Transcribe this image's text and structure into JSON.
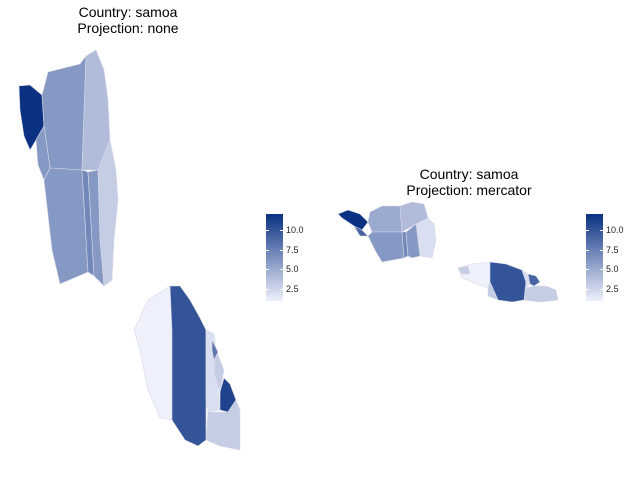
{
  "color_scale": {
    "low": "#eef0fb",
    "high": "#0a3182",
    "min": 1,
    "max": 12
  },
  "panels": [
    {
      "id": "none",
      "title_line1": "Country: samoa",
      "title_line2": "Projection: none",
      "legend_ticks": [
        {
          "label": "10.0",
          "value": 10.0
        },
        {
          "label": "7.5",
          "value": 7.5
        },
        {
          "label": "5.0",
          "value": 5.0
        },
        {
          "label": "2.5",
          "value": 2.5
        }
      ]
    },
    {
      "id": "mercator",
      "title_line1": "Country: samoa",
      "title_line2": "Projection: mercator",
      "legend_ticks": [
        {
          "label": "10.0",
          "value": 10.0
        },
        {
          "label": "7.5",
          "value": 7.5
        },
        {
          "label": "5.0",
          "value": 5.0
        },
        {
          "label": "2.5",
          "value": 2.5
        }
      ]
    }
  ]
}
